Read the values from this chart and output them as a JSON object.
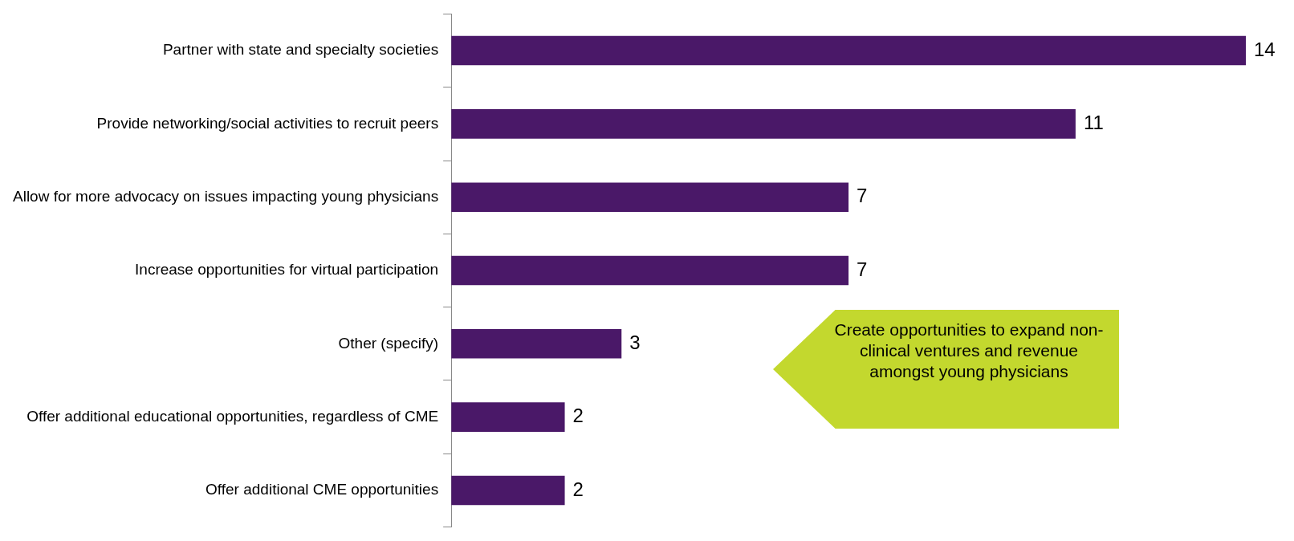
{
  "chart_data": {
    "type": "bar",
    "orientation": "horizontal",
    "categories": [
      "Partner with state and specialty societies",
      "Provide networking/social activities to recruit peers",
      "Allow for more advocacy on issues impacting young physicians",
      "Increase opportunities for virtual participation",
      "Other (specify)",
      "Offer additional educational opportunities, regardless of CME",
      "Offer additional CME opportunities"
    ],
    "values": [
      14,
      11,
      7,
      7,
      3,
      2,
      2
    ],
    "color": "#4a1868",
    "data_labels": true,
    "annotations": [
      "Create opportunities to expand non-clinical ventures and revenue amongst young physicians"
    ]
  }
}
